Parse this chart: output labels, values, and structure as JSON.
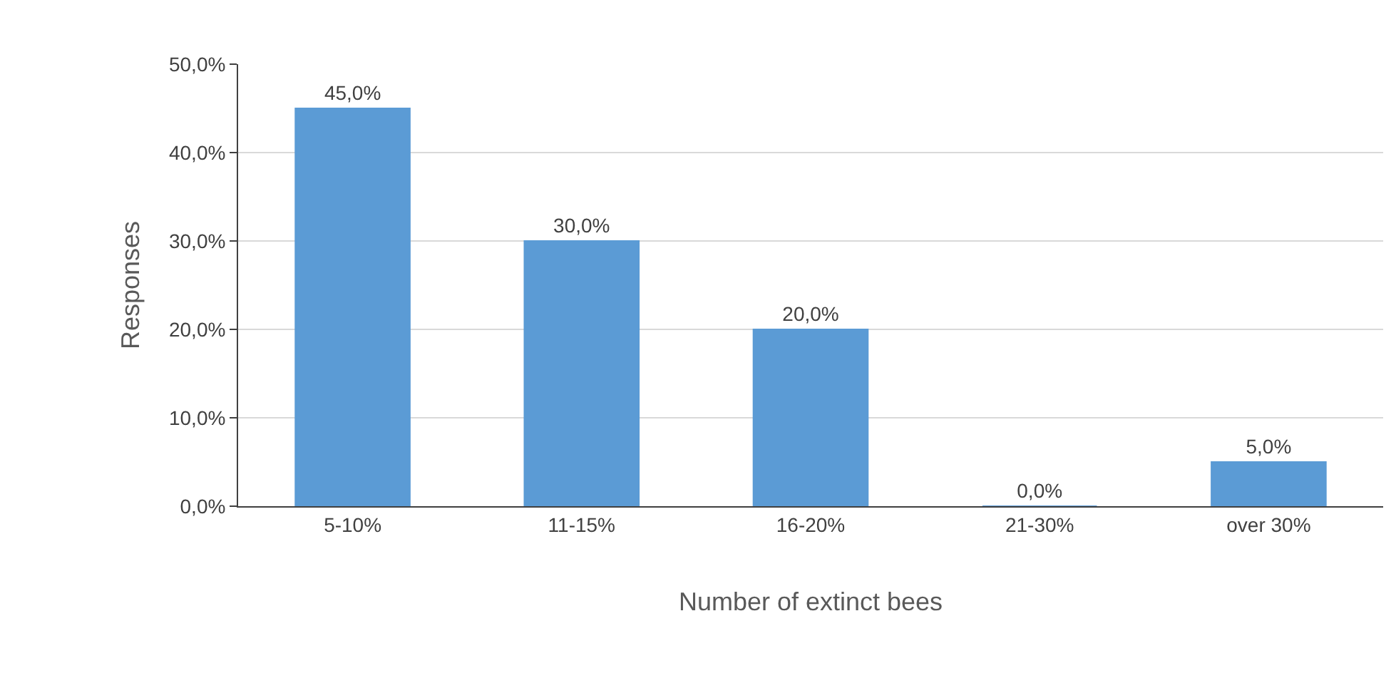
{
  "chart_data": {
    "type": "bar",
    "xlabel": "Number of extinct bees",
    "ylabel": "Responses",
    "categories": [
      "5-10%",
      "11-15%",
      "16-20%",
      "21-30%",
      "over 30%"
    ],
    "values": [
      45,
      30,
      20,
      0,
      5
    ],
    "value_labels": [
      "45,0%",
      "30,0%",
      "20,0%",
      "0,0%",
      "5,0%"
    ],
    "color": "#5b9bd5",
    "ylim": [
      0,
      50
    ],
    "yticks": [
      {
        "value": 0,
        "label": "0,0%"
      },
      {
        "value": 10,
        "label": "10,0%"
      },
      {
        "value": 20,
        "label": "20,0%"
      },
      {
        "value": 30,
        "label": "30,0%"
      },
      {
        "value": 40,
        "label": "40,0%"
      },
      {
        "value": 50,
        "label": "50,0%"
      }
    ],
    "grid": "y",
    "legend": false
  }
}
